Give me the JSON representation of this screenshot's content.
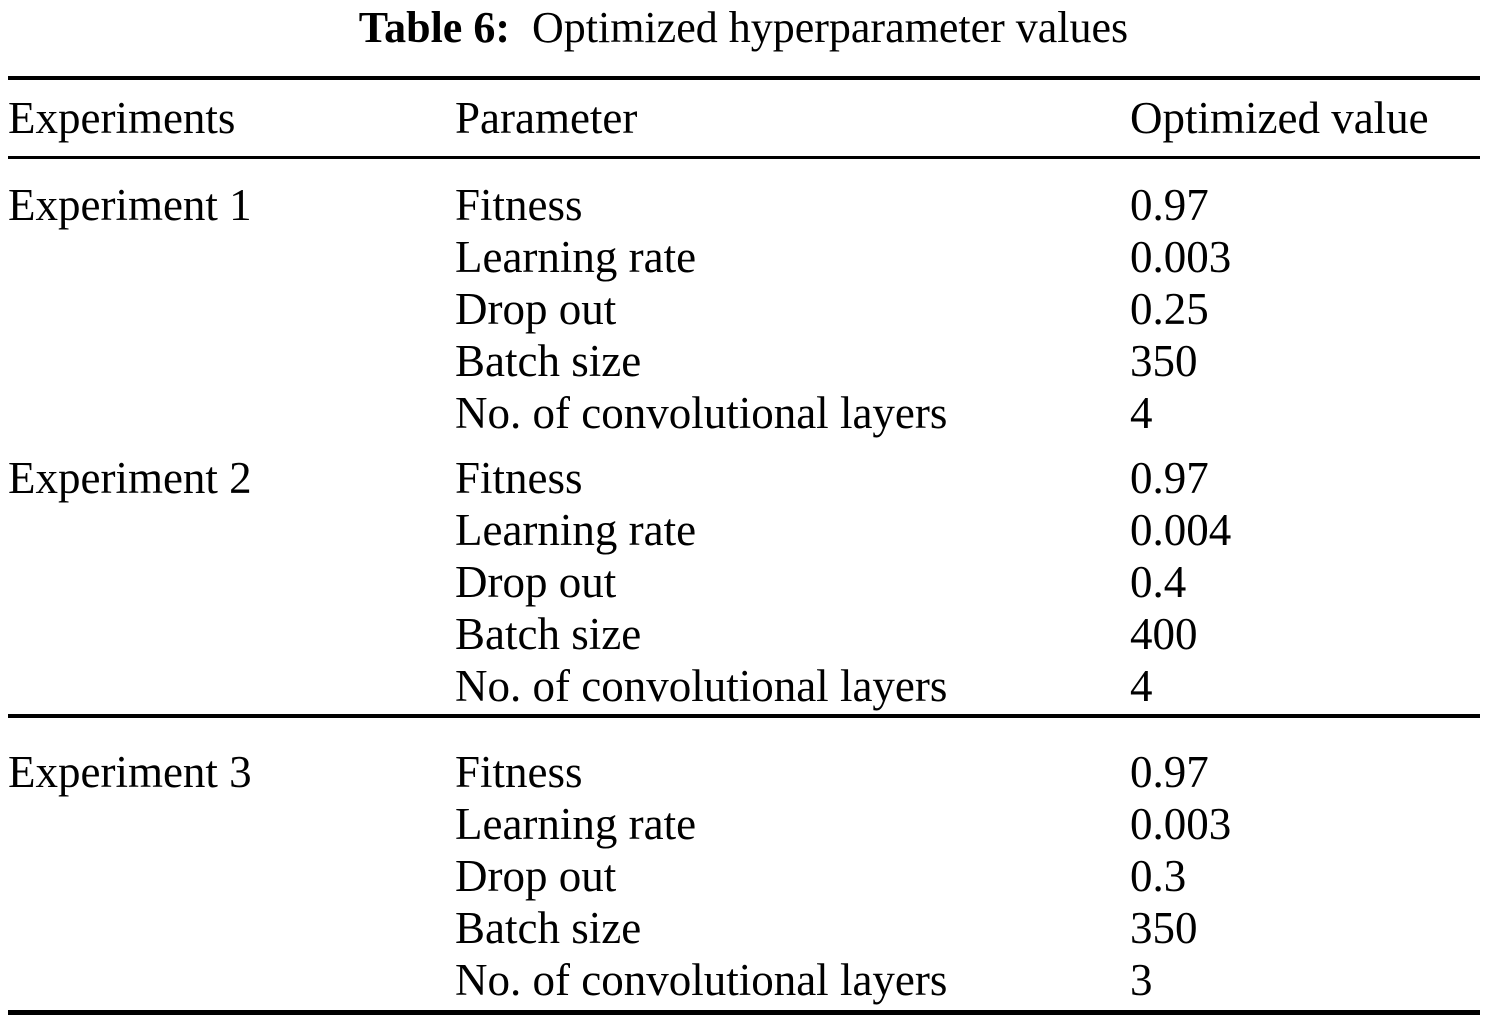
{
  "caption": {
    "label": "Table 6:",
    "title": "Optimized hyperparameter values"
  },
  "table": {
    "columns": {
      "experiments": "Experiments",
      "parameter": "Parameter",
      "value": "Optimized value"
    },
    "groups": [
      {
        "experiment": "Experiment 1",
        "rows": [
          {
            "parameter": "Fitness",
            "value": "0.97"
          },
          {
            "parameter": "Learning rate",
            "value": "0.003"
          },
          {
            "parameter": "Drop out",
            "value": "0.25"
          },
          {
            "parameter": "Batch size",
            "value": "350"
          },
          {
            "parameter": "No. of convolutional layers",
            "value": "4"
          }
        ]
      },
      {
        "experiment": "Experiment 2",
        "rows": [
          {
            "parameter": "Fitness",
            "value": "0.97"
          },
          {
            "parameter": "Learning rate",
            "value": "0.004"
          },
          {
            "parameter": "Drop out",
            "value": "0.4"
          },
          {
            "parameter": "Batch size",
            "value": "400"
          },
          {
            "parameter": "No. of convolutional layers",
            "value": "4"
          }
        ]
      },
      {
        "experiment": "Experiment 3",
        "rows": [
          {
            "parameter": "Fitness",
            "value": "0.97"
          },
          {
            "parameter": "Learning rate",
            "value": "0.003"
          },
          {
            "parameter": "Drop out",
            "value": "0.3"
          },
          {
            "parameter": "Batch size",
            "value": "350"
          },
          {
            "parameter": "No. of convolutional layers",
            "value": "3"
          }
        ]
      }
    ]
  }
}
